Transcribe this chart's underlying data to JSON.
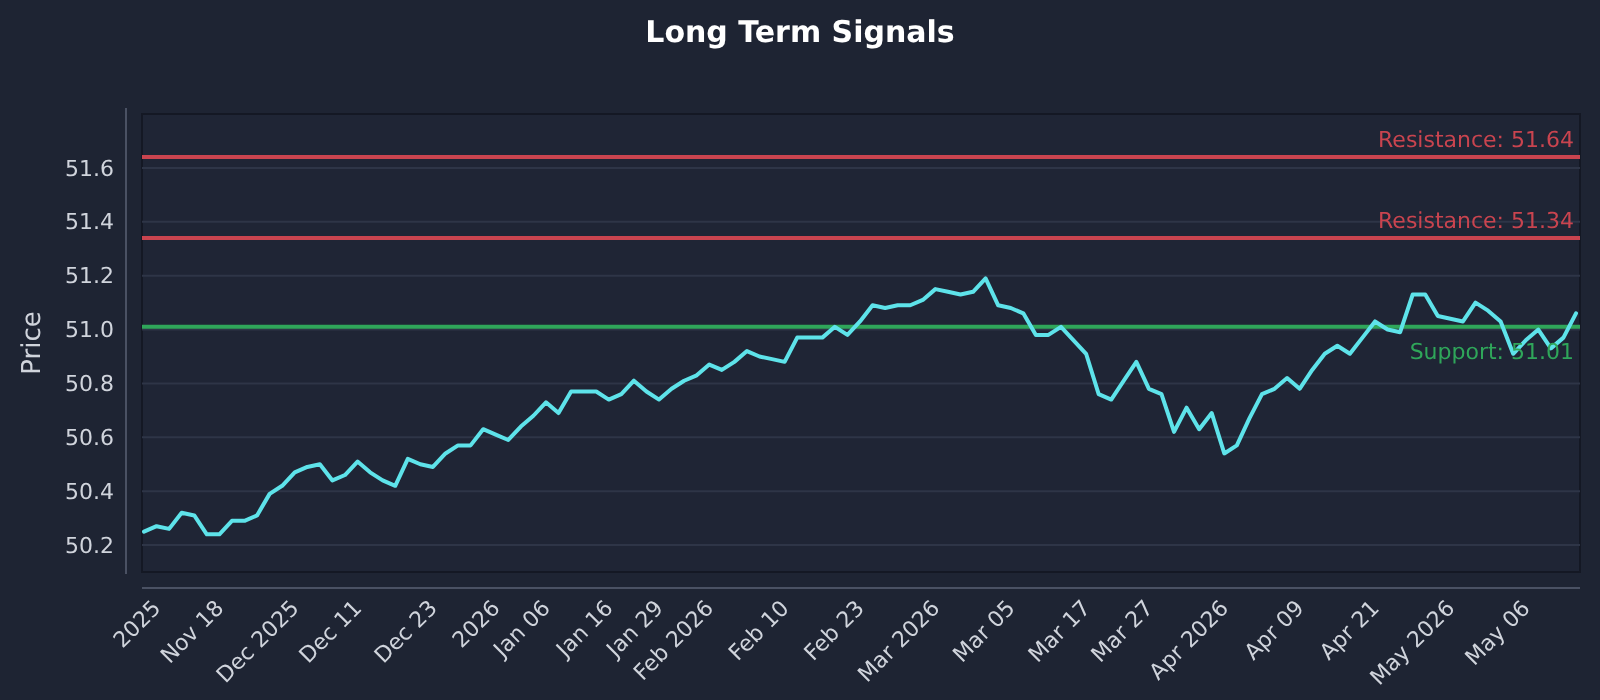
{
  "chart_data": {
    "type": "line",
    "title": "Long Term Signals",
    "ylabel": "Price",
    "categories": [
      null,
      "2025",
      null,
      null,
      null,
      null,
      "Nov 18",
      null,
      null,
      null,
      null,
      null,
      "Dec 2025",
      null,
      null,
      null,
      null,
      "Dec 11",
      null,
      null,
      null,
      null,
      null,
      "Dec 23",
      null,
      null,
      null,
      null,
      "2026",
      null,
      null,
      null,
      "Jan 06",
      null,
      null,
      null,
      null,
      "Jan 16",
      null,
      null,
      null,
      "Jan 29",
      null,
      null,
      null,
      "Feb 2026",
      null,
      null,
      null,
      null,
      null,
      "Feb 10",
      null,
      null,
      null,
      null,
      null,
      "Feb 23",
      null,
      null,
      null,
      null,
      null,
      "Mar 2026",
      null,
      null,
      null,
      null,
      null,
      "Mar 05",
      null,
      null,
      null,
      null,
      null,
      "Mar 17",
      null,
      null,
      null,
      null,
      "Mar 27",
      null,
      null,
      null,
      null,
      null,
      "Apr 2026",
      null,
      null,
      null,
      null,
      null,
      "Apr 09",
      null,
      null,
      null,
      null,
      null,
      "Apr 21",
      null,
      null,
      null,
      null,
      null,
      "May 2026",
      null,
      null,
      null,
      null,
      null,
      "May 06",
      null,
      null,
      null,
      null
    ],
    "series": [
      {
        "color": "#5ee3ea",
        "values": [
          50.25,
          50.27,
          50.26,
          50.32,
          50.31,
          50.24,
          50.24,
          50.29,
          50.29,
          50.31,
          50.39,
          50.42,
          50.47,
          50.49,
          50.5,
          50.44,
          50.46,
          50.51,
          50.47,
          50.44,
          50.42,
          50.52,
          50.5,
          50.49,
          50.54,
          50.57,
          50.57,
          50.63,
          50.61,
          50.59,
          50.64,
          50.68,
          50.73,
          50.69,
          50.77,
          50.77,
          50.77,
          50.74,
          50.76,
          50.81,
          50.77,
          50.74,
          50.78,
          50.81,
          50.83,
          50.87,
          50.85,
          50.88,
          50.92,
          50.9,
          50.89,
          50.88,
          50.97,
          50.97,
          50.97,
          51.01,
          50.98,
          51.03,
          51.09,
          51.08,
          51.09,
          51.09,
          51.11,
          51.15,
          51.14,
          51.13,
          51.14,
          51.19,
          51.09,
          51.08,
          51.06,
          50.98,
          50.98,
          51.01,
          50.96,
          50.91,
          50.76,
          50.74,
          50.81,
          50.88,
          50.78,
          50.76,
          50.62,
          50.71,
          50.63,
          50.69,
          50.54,
          50.57,
          50.67,
          50.76,
          50.78,
          50.82,
          50.78,
          50.85,
          50.91,
          50.94,
          50.91,
          50.97,
          51.03,
          51.0,
          50.99,
          51.13,
          51.13,
          51.05,
          51.04,
          51.03,
          51.1,
          51.07,
          51.03,
          50.91,
          50.96,
          51.0,
          50.93,
          50.97,
          51.06
        ]
      }
    ],
    "ylim": [
      50.1,
      51.8
    ],
    "yticks": [
      {
        "value": 50.2,
        "label": "50.2"
      },
      {
        "value": 50.4,
        "label": "50.4"
      },
      {
        "value": 50.6,
        "label": "50.6"
      },
      {
        "value": 50.8,
        "label": "50.8"
      },
      {
        "value": 51.0,
        "label": "51.0"
      },
      {
        "value": 51.2,
        "label": "51.2"
      },
      {
        "value": 51.4,
        "label": "51.4"
      },
      {
        "value": 51.6,
        "label": "51.6"
      }
    ],
    "grid": "y",
    "ref_lines": [
      {
        "axis": "y",
        "value": 51.64,
        "label": "Resistance: 51.64",
        "color": "#c9444f"
      },
      {
        "axis": "y",
        "value": 51.34,
        "label": "Resistance: 51.34",
        "color": "#c9444f"
      },
      {
        "axis": "y",
        "value": 51.01,
        "label": "Support: 51.01",
        "color": "#2fa65a"
      }
    ]
  }
}
